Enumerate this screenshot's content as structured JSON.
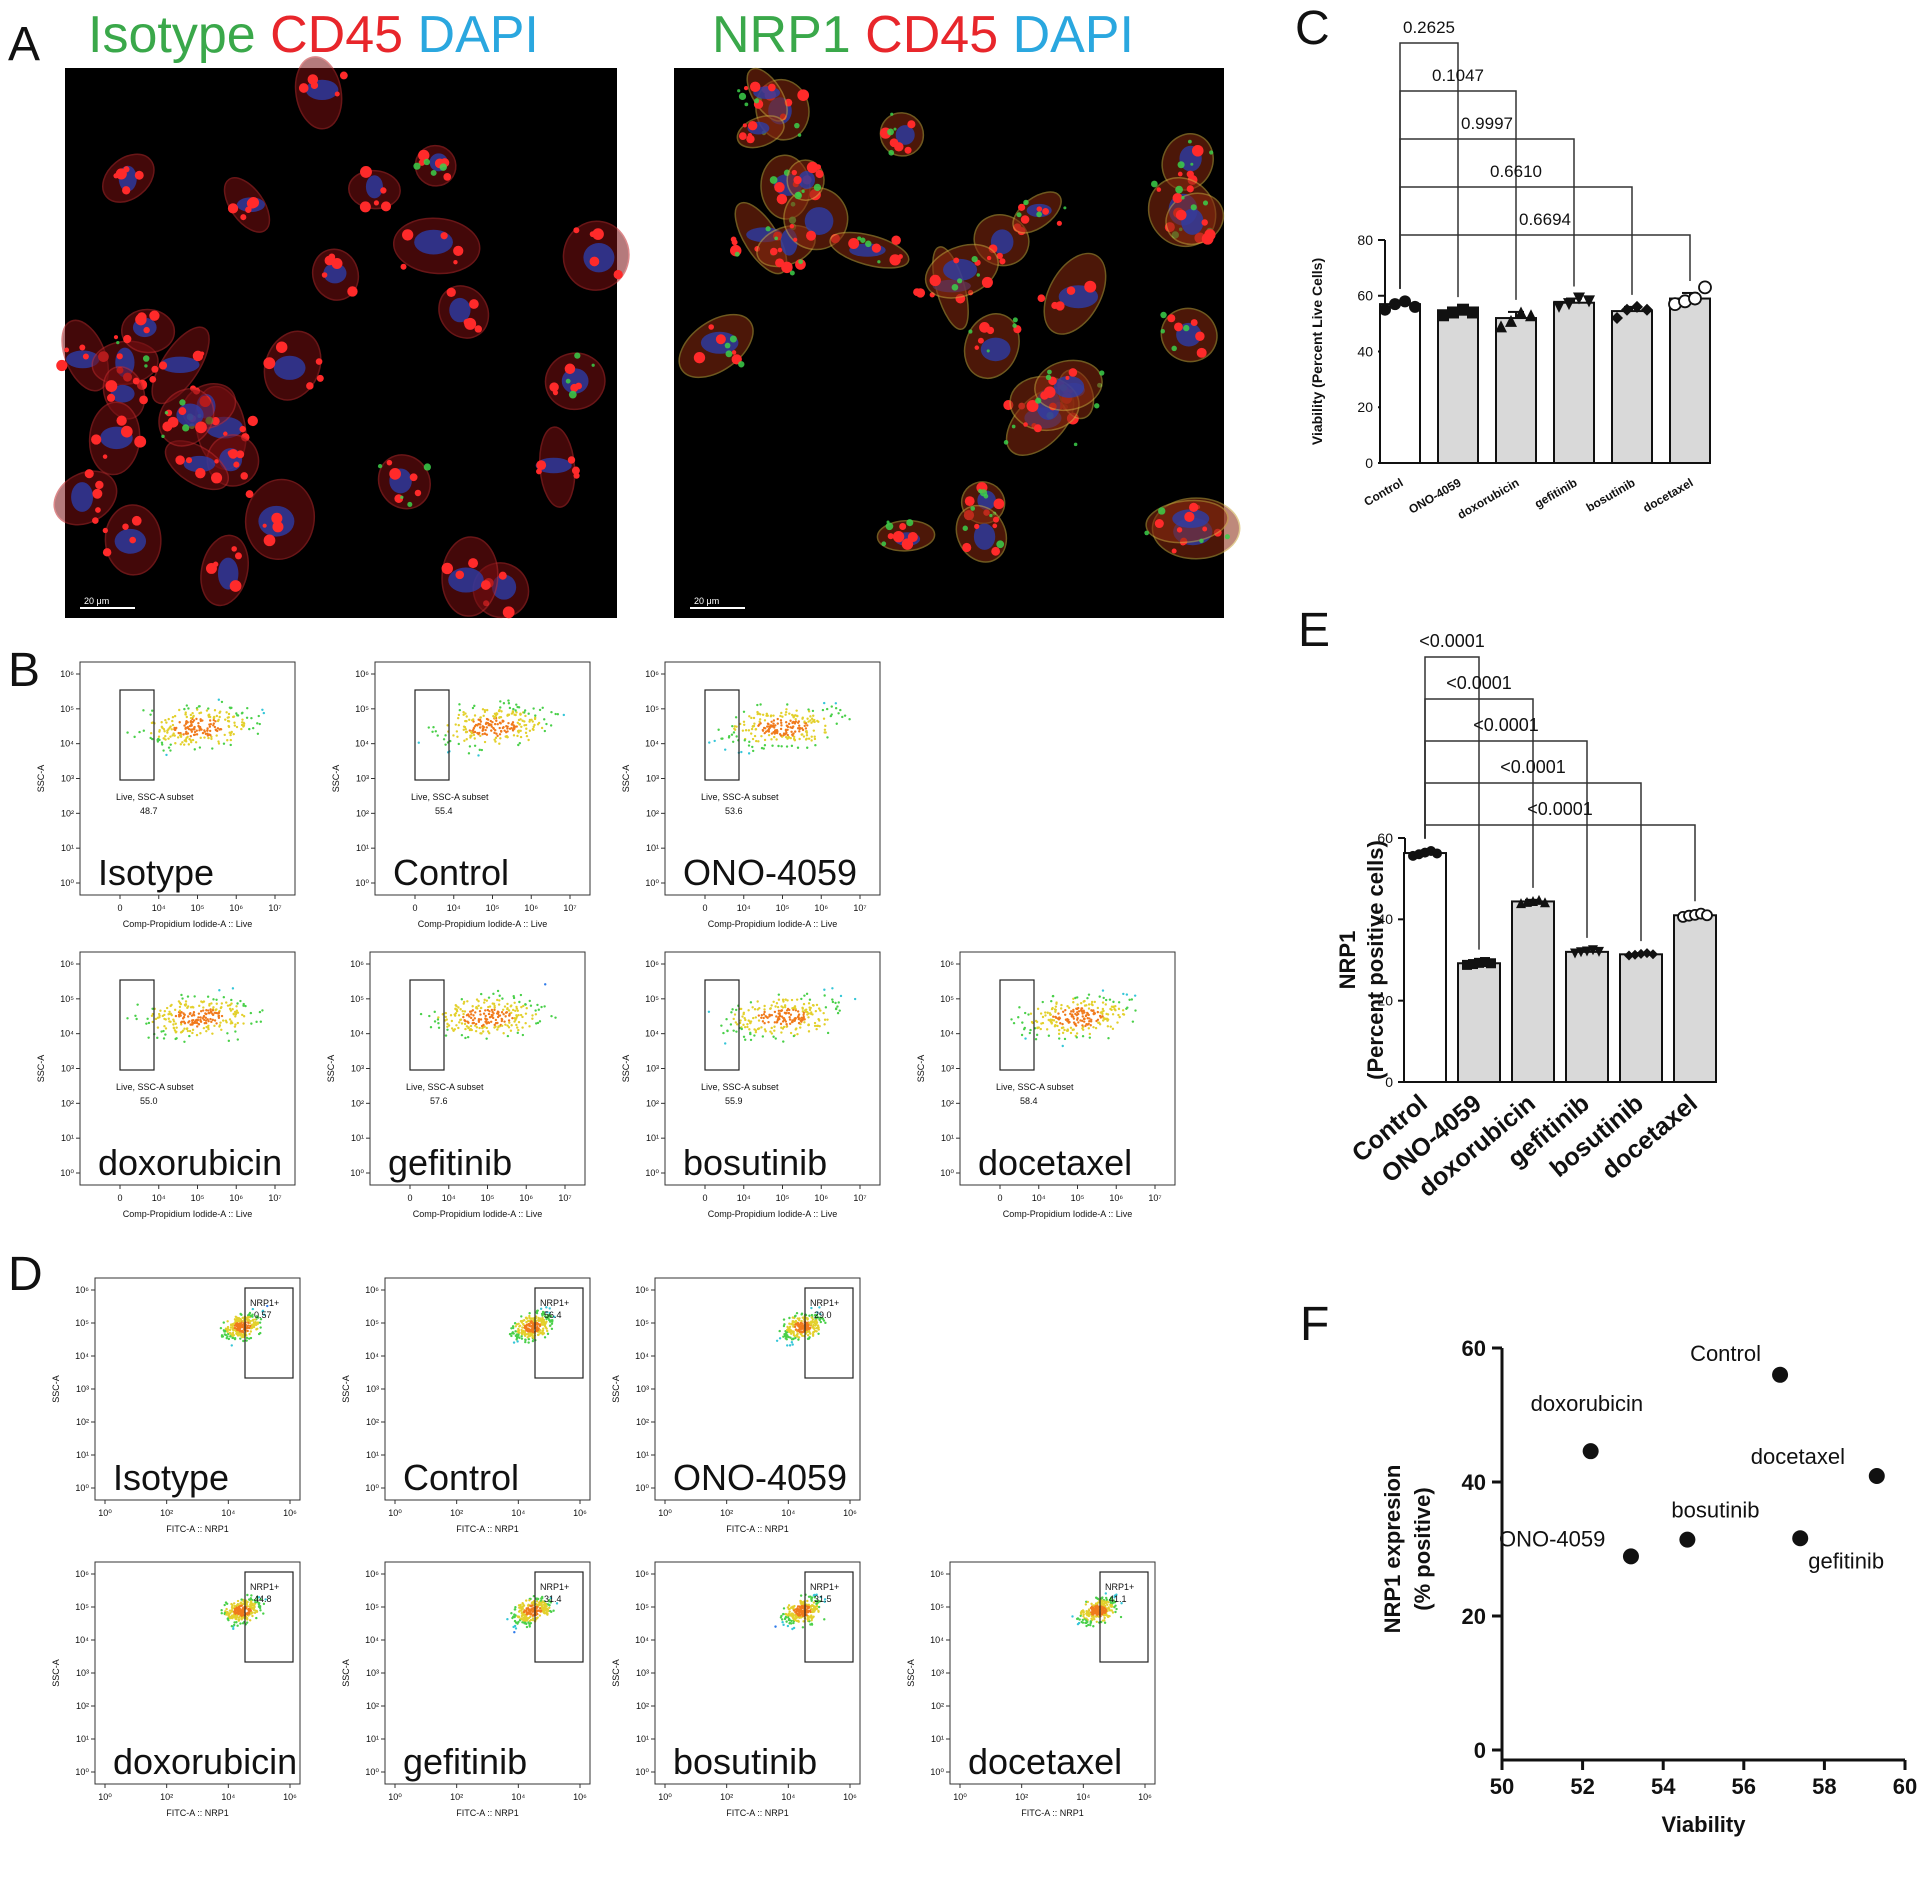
{
  "panels": {
    "A": {
      "letter": "A",
      "left_title": [
        {
          "text": "Isotype",
          "color": "#3aa84a"
        },
        {
          "text": "CD45",
          "color": "#e8262b"
        },
        {
          "text": "DAPI",
          "color": "#2aa7df"
        }
      ],
      "right_title": [
        {
          "text": "NRP1",
          "color": "#3aa84a"
        },
        {
          "text": "CD45",
          "color": "#e8262b"
        },
        {
          "text": "DAPI",
          "color": "#2aa7df"
        }
      ],
      "scale_bar_label": "20 μm"
    },
    "B": {
      "letter": "B",
      "xlabel": "Comp-Propidium Iodide-A :: Live",
      "ylabel": "SSC-A",
      "gate_name": "Live, SSC-A subset",
      "plots": [
        {
          "sample": "Isotype",
          "value": "48.7"
        },
        {
          "sample": "Control",
          "value": "55.4"
        },
        {
          "sample": "ONO-4059",
          "value": "53.6"
        },
        {
          "sample": "doxorubicin",
          "value": "55.0"
        },
        {
          "sample": "gefitinib",
          "value": "57.6"
        },
        {
          "sample": "bosutinib",
          "value": "55.9"
        },
        {
          "sample": "docetaxel",
          "value": "58.4"
        }
      ],
      "x_ticks": [
        "0",
        "10⁴",
        "10⁵",
        "10⁶",
        "10⁷"
      ],
      "y_ticks": [
        "10⁶",
        "10⁵",
        "10⁴",
        "10³",
        "10²",
        "10¹",
        "10⁰"
      ]
    },
    "C": {
      "letter": "C"
    },
    "D": {
      "letter": "D",
      "xlabel": "FITC-A :: NRP1",
      "ylabel": "SSC-A",
      "gate_name": "NRP1+",
      "plots": [
        {
          "sample": "Isotype",
          "value": "0.57"
        },
        {
          "sample": "Control",
          "value": "56.4"
        },
        {
          "sample": "ONO-4059",
          "value": "29.0"
        },
        {
          "sample": "doxorubicin",
          "value": "44.8"
        },
        {
          "sample": "gefitinib",
          "value": "31.4"
        },
        {
          "sample": "bosutinib",
          "value": "31.5"
        },
        {
          "sample": "docetaxel",
          "value": "41.1"
        }
      ],
      "x_ticks": [
        "10⁰",
        "10²",
        "10⁴",
        "10⁶"
      ],
      "y_ticks": [
        "10⁶",
        "10⁵",
        "10⁴",
        "10³",
        "10²",
        "10¹",
        "10⁰"
      ]
    },
    "E": {
      "letter": "E"
    },
    "F": {
      "letter": "F"
    }
  },
  "chart_data": [
    {
      "id": "C",
      "type": "bar",
      "categories": [
        "Control",
        "ONO-4059",
        "doxorubicin",
        "gefitinib",
        "bosutinib",
        "docetaxel"
      ],
      "values": [
        57,
        54,
        52,
        57.5,
        54.5,
        59
      ],
      "errors": [
        1.2,
        1.2,
        2.2,
        1.5,
        1.5,
        2.0
      ],
      "points": [
        [
          55,
          57,
          58,
          56
        ],
        [
          53,
          54,
          55,
          54
        ],
        [
          49,
          51,
          54,
          53
        ],
        [
          56,
          57,
          59,
          58
        ],
        [
          52,
          55,
          56,
          55
        ],
        [
          57,
          58,
          59,
          63
        ]
      ],
      "markers": [
        "circle",
        "square",
        "triangle",
        "triangle-down",
        "diamond",
        "open-circle"
      ],
      "fills": [
        "#ffffff",
        "#d9d9d9",
        "#d9d9d9",
        "#d9d9d9",
        "#d9d9d9",
        "#d9d9d9"
      ],
      "ylabel": "Viability (Percent Live Cells)",
      "ylim": [
        0,
        80
      ],
      "yticks": [
        0,
        20,
        40,
        60,
        80
      ],
      "comparisons": [
        {
          "to": "ONO-4059",
          "p": "0.2625"
        },
        {
          "to": "doxorubicin",
          "p": "0.1047"
        },
        {
          "to": "gefitinib",
          "p": "0.9997"
        },
        {
          "to": "bosutinib",
          "p": "0.6610"
        },
        {
          "to": "docetaxel",
          "p": "0.6694"
        }
      ]
    },
    {
      "id": "E",
      "type": "bar",
      "categories": [
        "Control",
        "ONO-4059",
        "doxorubicin",
        "gefitinib",
        "bosutinib",
        "docetaxel"
      ],
      "values": [
        56.3,
        29.2,
        44.4,
        32.0,
        31.4,
        41.0
      ],
      "errors": [
        0.6,
        0.4,
        0.4,
        0.5,
        0.3,
        0.5
      ],
      "points": [
        [
          55.6,
          56.0,
          56.4,
          56.8,
          56.2
        ],
        [
          28.8,
          29.0,
          29.3,
          29.5,
          29.2
        ],
        [
          44.0,
          44.3,
          44.5,
          44.8,
          44.2
        ],
        [
          31.6,
          31.9,
          32.1,
          32.4,
          32.0
        ],
        [
          31.1,
          31.3,
          31.5,
          31.7,
          31.4
        ],
        [
          40.6,
          40.9,
          41.1,
          41.4,
          41.0
        ]
      ],
      "markers": [
        "circle",
        "square",
        "triangle",
        "triangle-down",
        "diamond",
        "open-circle"
      ],
      "fills": [
        "#ffffff",
        "#d9d9d9",
        "#d9d9d9",
        "#d9d9d9",
        "#d9d9d9",
        "#d9d9d9"
      ],
      "ylabel": "NRP1",
      "ylabel2": "(Percent positive cells)",
      "ylim": [
        0,
        60
      ],
      "yticks": [
        0,
        20,
        40,
        60
      ],
      "comparisons": [
        {
          "to": "ONO-4059",
          "p": "<0.0001"
        },
        {
          "to": "doxorubicin",
          "p": "<0.0001"
        },
        {
          "to": "gefitinib",
          "p": "<0.0001"
        },
        {
          "to": "bosutinib",
          "p": "<0.0001"
        },
        {
          "to": "docetaxel",
          "p": "<0.0001"
        }
      ]
    },
    {
      "id": "F",
      "type": "scatter",
      "points": [
        {
          "label": "Control",
          "x": 56.9,
          "y": 56.0
        },
        {
          "label": "doxorubicin",
          "x": 52.2,
          "y": 44.6
        },
        {
          "label": "docetaxel",
          "x": 59.3,
          "y": 40.9
        },
        {
          "label": "ONO-4059",
          "x": 53.2,
          "y": 28.9
        },
        {
          "label": "bosutinib",
          "x": 54.6,
          "y": 31.4
        },
        {
          "label": "gefitinib",
          "x": 57.4,
          "y": 31.6
        }
      ],
      "xlabel": "Viability",
      "ylabel": "NRP1 expresion",
      "ylabel2": "(% positive)",
      "xlim": [
        50,
        60
      ],
      "ylim": [
        0,
        60
      ],
      "xticks": [
        50,
        52,
        54,
        56,
        58,
        60
      ],
      "yticks": [
        0,
        20,
        40,
        60
      ]
    }
  ]
}
